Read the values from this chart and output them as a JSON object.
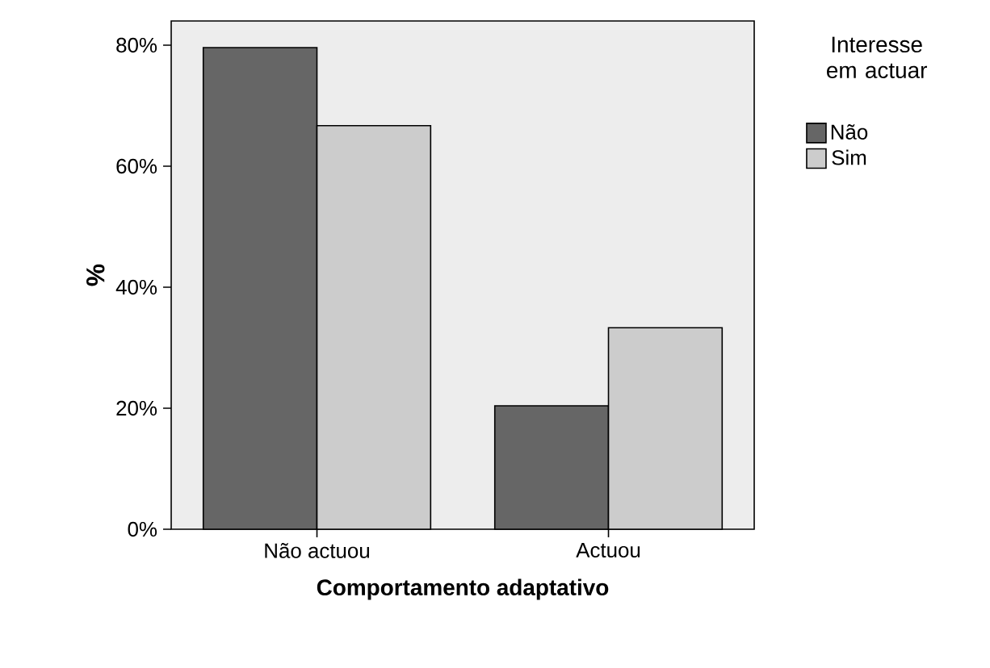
{
  "chart_data": {
    "type": "bar",
    "xlabel": "Comportamento adaptativo",
    "ylabel": "%",
    "legend_title": "Interesse em actuar",
    "categories": [
      "Não actuou",
      "Actuou"
    ],
    "series": [
      {
        "name": "Não",
        "color": "#666666",
        "values": [
          79.6,
          20.4
        ]
      },
      {
        "name": "Sim",
        "color": "#cccccc",
        "values": [
          66.7,
          33.3
        ]
      }
    ],
    "ylim": [
      0,
      84
    ],
    "yticks": [
      {
        "value": 0,
        "label": "0%"
      },
      {
        "value": 20,
        "label": "20%"
      },
      {
        "value": 40,
        "label": "40%"
      },
      {
        "value": 60,
        "label": "60%"
      },
      {
        "value": 80,
        "label": "80%"
      }
    ],
    "grid": false,
    "legend": "right"
  }
}
